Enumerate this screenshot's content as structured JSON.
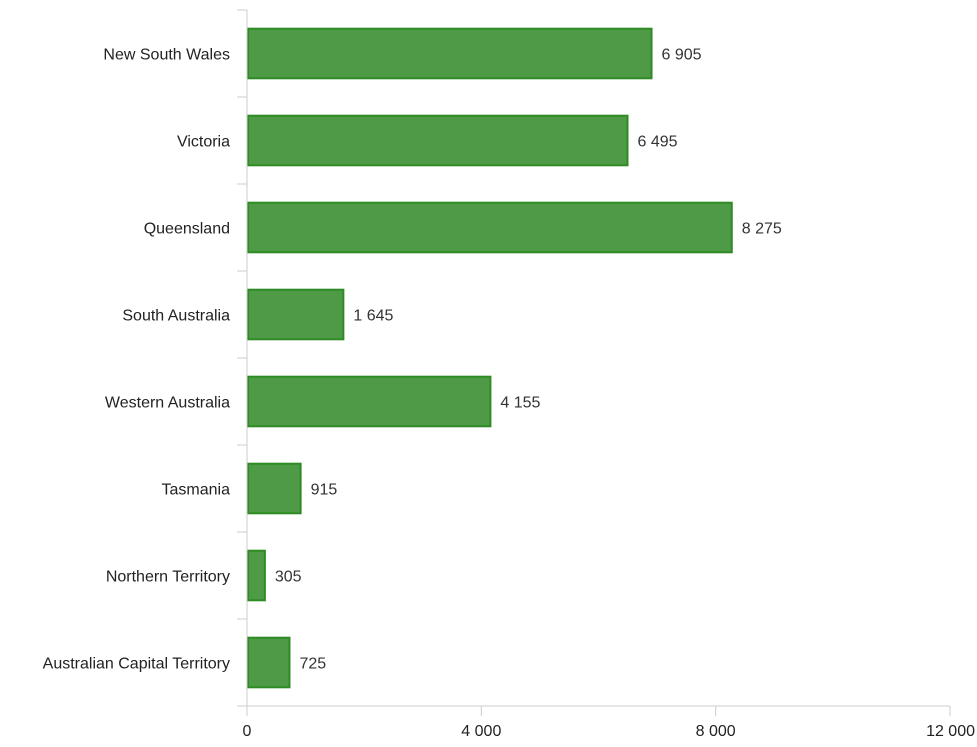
{
  "chart_data": {
    "type": "bar",
    "orientation": "horizontal",
    "categories": [
      "New South Wales",
      "Victoria",
      "Queensland",
      "South Australia",
      "Western Australia",
      "Tasmania",
      "Northern Territory",
      "Australian Capital Territory"
    ],
    "values": [
      6905,
      6495,
      8275,
      1645,
      4155,
      915,
      305,
      725
    ],
    "value_labels": [
      "6 905",
      "6 495",
      "8 275",
      "1 645",
      "4 155",
      "915",
      "305",
      "725"
    ],
    "xlim": [
      0,
      12000
    ],
    "x_ticks": [
      0,
      4000,
      8000,
      12000
    ],
    "x_tick_labels": [
      "0",
      "4 000",
      "8 000",
      "12 000"
    ],
    "title": "",
    "xlabel": "",
    "ylabel": "",
    "grid": false,
    "legend": "none",
    "colors": {
      "bar_fill": "#4f9a47",
      "bar_stroke": "#2e8b24",
      "axis": "#cccccc",
      "text": "#222222"
    }
  }
}
